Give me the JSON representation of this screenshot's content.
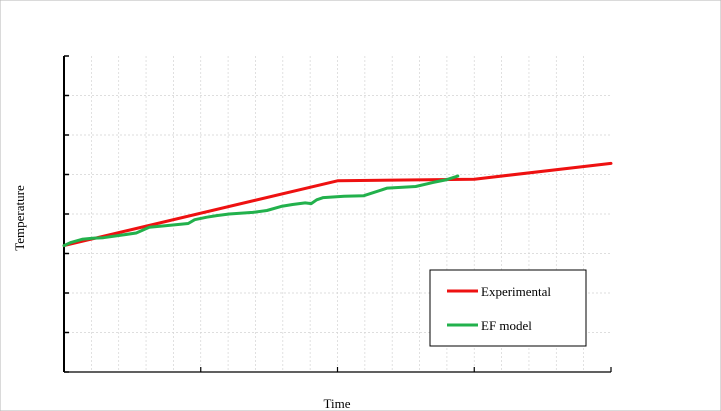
{
  "chart_data": {
    "type": "line",
    "title": "",
    "xlabel": "Time",
    "ylabel": "Temperature",
    "xlim": [
      0,
      100
    ],
    "ylim": [
      0,
      100
    ],
    "x_tick_count": 5,
    "y_tick_count": 9,
    "grid": true,
    "legend_position": "bottom-right",
    "series": [
      {
        "name": "Experimental",
        "color": "#ee1111",
        "x": [
          0,
          50,
          75,
          100
        ],
        "y": [
          40,
          60.5,
          61,
          66
        ]
      },
      {
        "name": "EF model",
        "color": "#22b14c",
        "x": [
          0,
          1.3,
          3.3,
          5.2,
          7.2,
          13.2,
          15.6,
          18.5,
          22.7,
          23.9,
          26.1,
          27.9,
          30.2,
          34.5,
          37.1,
          39.7,
          41.8,
          44.1,
          45.2,
          46.2,
          47.4,
          51.2,
          54.8,
          59.1,
          64.3,
          67.5,
          69.8,
          72.0
        ],
        "y": [
          40,
          41,
          42,
          42.3,
          42.5,
          44,
          45.8,
          46.3,
          47,
          48.2,
          49,
          49.5,
          50,
          50.5,
          51.1,
          52.4,
          53,
          53.5,
          53.3,
          54.5,
          55.2,
          55.6,
          55.8,
          58.2,
          58.7,
          60,
          60.8,
          62
        ]
      }
    ]
  }
}
